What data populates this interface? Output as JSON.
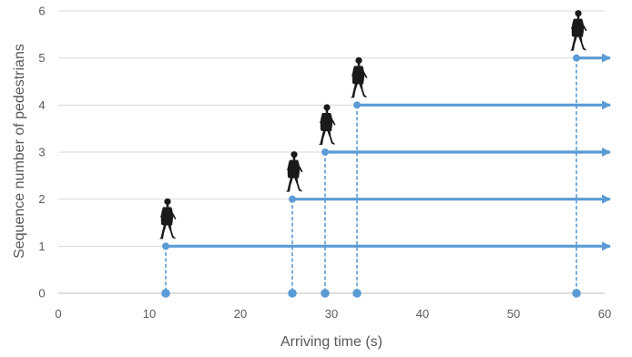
{
  "chart_data": {
    "type": "scatter",
    "xlabel": "Arriving time (s)",
    "ylabel": "Sequence number of pedestrians",
    "xlim": [
      0,
      60
    ],
    "ylim": [
      0,
      6
    ],
    "x_ticks": [
      0,
      10,
      20,
      30,
      40,
      50,
      60
    ],
    "y_ticks": [
      0,
      1,
      2,
      3,
      4,
      5,
      6
    ],
    "grid": "horizontal",
    "legend": "none",
    "series_color": "#5b9bd5",
    "axis_text_color": "#595959",
    "grid_color": "#d9d9d9",
    "icon": "walking-pedestrian-icon",
    "arrivals": [
      {
        "time": 11.8,
        "sequence": 1
      },
      {
        "time": 25.7,
        "sequence": 2
      },
      {
        "time": 29.3,
        "sequence": 3
      },
      {
        "time": 32.8,
        "sequence": 4
      },
      {
        "time": 56.9,
        "sequence": 5
      }
    ]
  }
}
